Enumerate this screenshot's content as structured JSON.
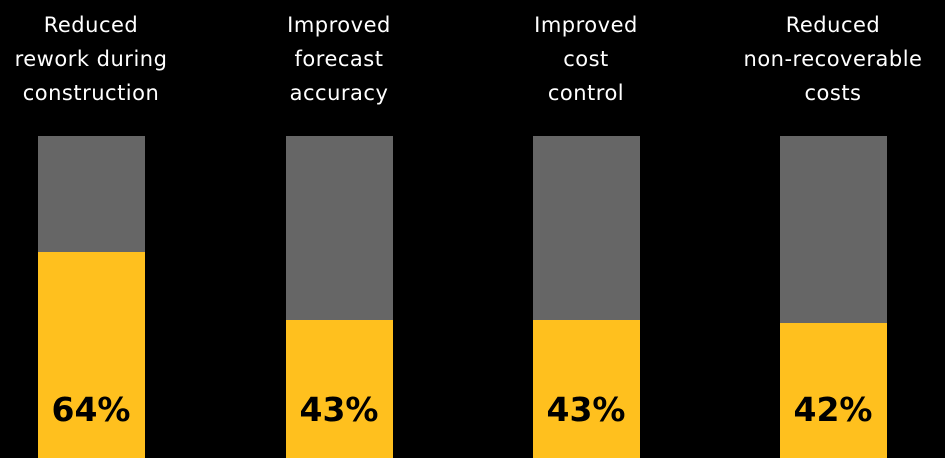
{
  "chart_data": {
    "type": "bar",
    "categories": [
      "Reduced\nrework during\nconstruction",
      "Improved\nforecast\naccuracy",
      "Improved\ncost\ncontrol",
      "Reduced\nnon-recoverable\ncosts"
    ],
    "values": [
      64,
      43,
      43,
      42
    ],
    "value_labels": [
      "64%",
      "43%",
      "43%",
      "42%"
    ],
    "ylim": [
      0,
      100
    ],
    "grid": false,
    "colors": {
      "background": "#000000",
      "fill": "#FFC01E",
      "track": "#666666",
      "label_text": "#FFFFFF",
      "value_text": "#000000"
    }
  }
}
